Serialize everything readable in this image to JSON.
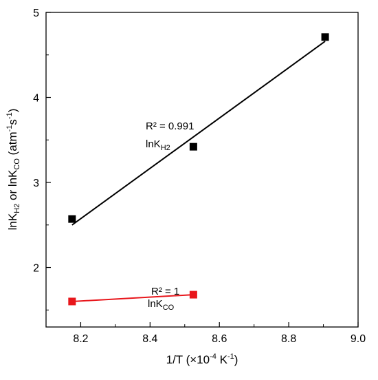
{
  "chart_data": {
    "type": "scatter",
    "xlabel": "1/T (×10",
    "xlabel_exp": "-4",
    "xlabel_unit": " K",
    "xlabel_unit_exp": "-1",
    "xlabel_close": ")",
    "ylabel": {
      "a": "lnK",
      "a_sub": "H2",
      "b": " or lnK",
      "b_sub": "CO",
      "c": " (atm",
      "c_sup1": "-1",
      "d": "s",
      "d_sup": "-1",
      "e": ")"
    },
    "xlim": [
      8.1,
      9.0
    ],
    "ylim": [
      1.3,
      5.0
    ],
    "xticks": [
      "8.2",
      "8.4",
      "8.6",
      "8.8",
      "9.0"
    ],
    "xtick_values": [
      8.2,
      8.4,
      8.6,
      8.8,
      9.0
    ],
    "yticks": [
      "2",
      "3",
      "4",
      "5"
    ],
    "ytick_values": [
      2,
      3,
      4,
      5
    ],
    "grid": false,
    "legend": "none",
    "series": [
      {
        "color": "#000000",
        "marker": "square",
        "x": [
          8.175,
          8.525,
          8.905
        ],
        "y": [
          2.57,
          3.42,
          4.71
        ],
        "fit": {
          "x": [
            8.175,
            8.905
          ],
          "y": [
            2.5,
            4.66
          ]
        }
      },
      {
        "color": "#e8161b",
        "marker": "square",
        "x": [
          8.175,
          8.525
        ],
        "y": [
          1.6,
          1.68
        ],
        "fit": {
          "x": [
            8.175,
            8.525
          ],
          "y": [
            1.6,
            1.68
          ]
        }
      }
    ],
    "annotations": [
      {
        "r2": "R² = 0.991",
        "name": "lnK",
        "name_sub": "H2"
      },
      {
        "r2": "R² = 1",
        "name": "lnK",
        "name_sub": "CO"
      }
    ]
  }
}
